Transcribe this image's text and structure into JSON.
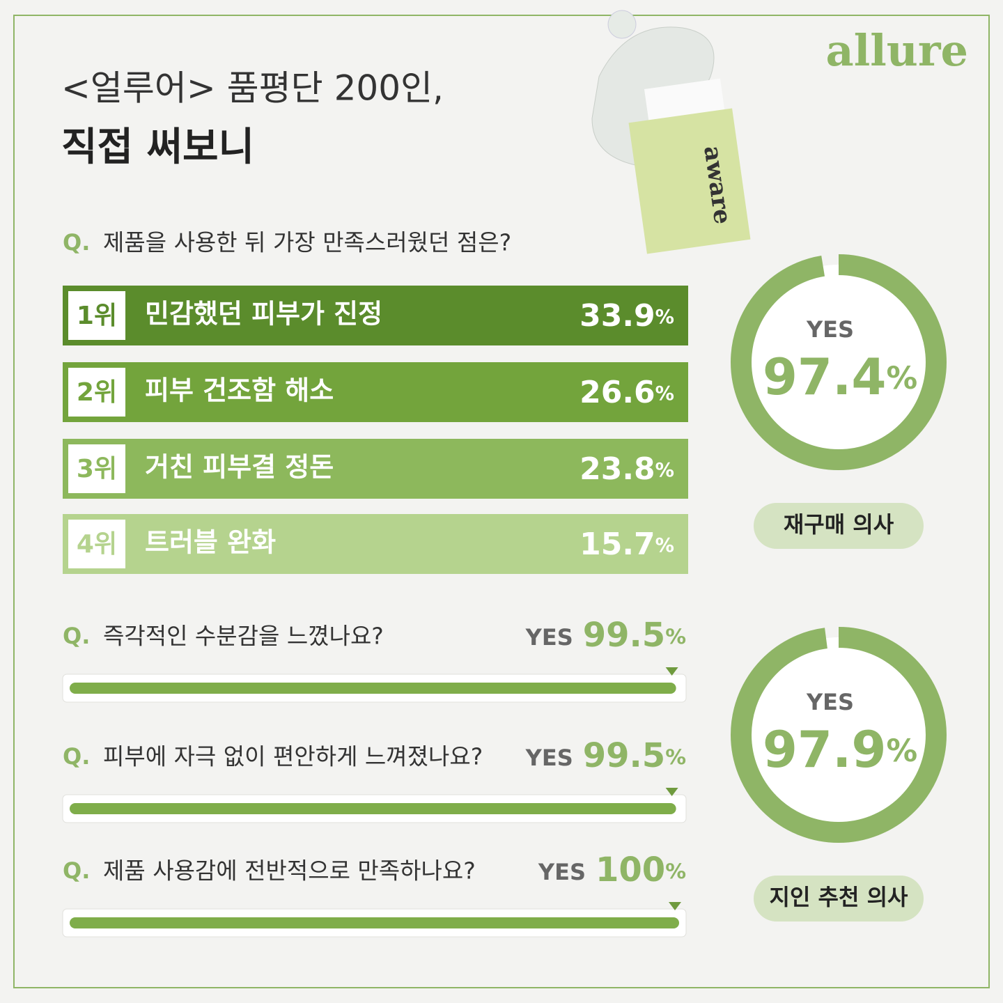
{
  "brand": "allure",
  "title": {
    "line1": "<얼루어> 품평단 200인,",
    "line2": "직접 써보니"
  },
  "product": "aware",
  "ranking": {
    "q_mark": "Q.",
    "question": "제품을 사용한 뒤 가장 만족스러웠던 점은?",
    "items": [
      {
        "rank": "1위",
        "label": "민감했던 피부가 진정",
        "value": 33.9,
        "unit": "%"
      },
      {
        "rank": "2위",
        "label": "피부 건조함 해소",
        "value": 26.6,
        "unit": "%"
      },
      {
        "rank": "3위",
        "label": "거친 피부결 정돈",
        "value": 23.8,
        "unit": "%"
      },
      {
        "rank": "4위",
        "label": "트러블 완화",
        "value": 15.7,
        "unit": "%"
      }
    ]
  },
  "questions": [
    {
      "q_mark": "Q.",
      "question": "즉각적인 수분감을 느꼈나요?",
      "answer": "YES",
      "value": 99.5,
      "unit": "%"
    },
    {
      "q_mark": "Q.",
      "question": "피부에 자극 없이 편안하게 느껴졌나요?",
      "answer": "YES",
      "value": 99.5,
      "unit": "%"
    },
    {
      "q_mark": "Q.",
      "question": "제품 사용감에 전반적으로 만족하나요?",
      "answer": "YES",
      "value": 100,
      "unit": "%"
    }
  ],
  "rings": [
    {
      "answer": "YES",
      "value": 97.4,
      "unit": "%",
      "label": "재구매 의사"
    },
    {
      "answer": "YES",
      "value": 97.9,
      "unit": "%",
      "label": "지인 추천 의사"
    }
  ]
}
